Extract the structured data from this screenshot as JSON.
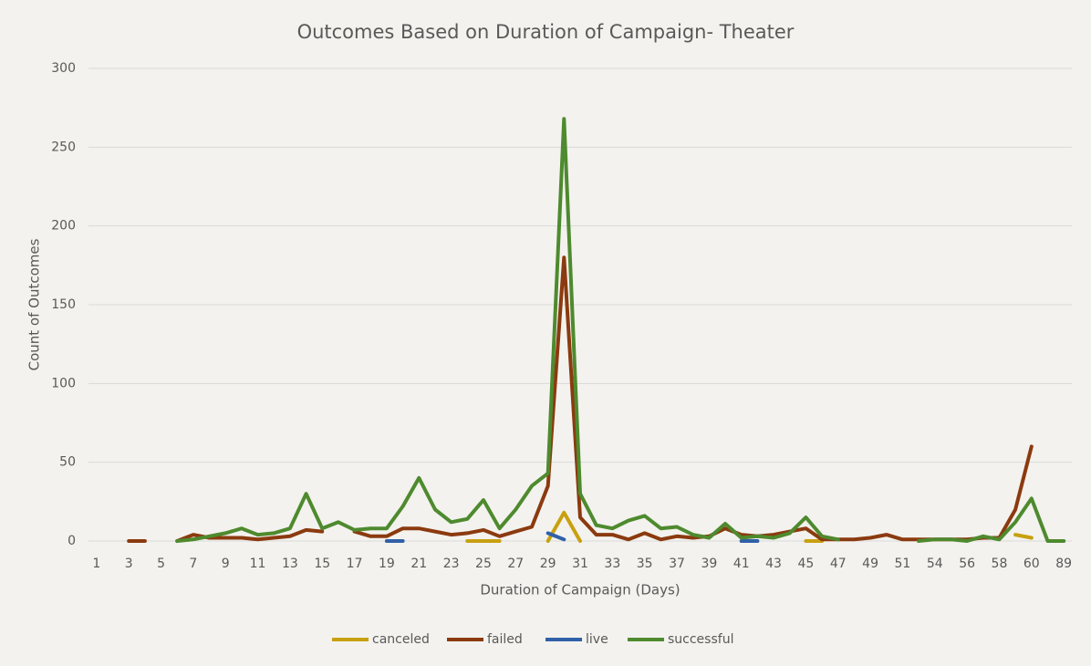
{
  "chart_data": {
    "type": "line",
    "title": "Outcomes Based on Duration of Campaign- Theater",
    "x_label": "Duration of Campaign (Days)",
    "y_label": "Count of Outcomes",
    "categories": [
      "1",
      null,
      "3",
      null,
      "5",
      null,
      "7",
      null,
      "9",
      null,
      "11",
      null,
      "13",
      null,
      "15",
      null,
      "17",
      null,
      "19",
      null,
      "21",
      null,
      "23",
      null,
      "25",
      null,
      "27",
      null,
      "29",
      null,
      "31",
      null,
      "33",
      null,
      "35",
      null,
      "37",
      null,
      "39",
      null,
      "41",
      null,
      "43",
      null,
      "45",
      null,
      "47",
      null,
      "49",
      null,
      "51",
      null,
      "54",
      null,
      "56",
      null,
      "58",
      null,
      "60",
      null,
      "89"
    ],
    "series": [
      {
        "name": "canceled",
        "color": "#c8a010",
        "values": [
          null,
          null,
          null,
          null,
          null,
          null,
          null,
          null,
          null,
          null,
          null,
          null,
          null,
          null,
          null,
          null,
          null,
          null,
          null,
          null,
          null,
          null,
          null,
          0,
          0,
          0,
          null,
          null,
          0,
          18,
          0,
          null,
          null,
          null,
          null,
          null,
          null,
          null,
          null,
          null,
          null,
          null,
          null,
          null,
          0,
          0,
          null,
          null,
          null,
          null,
          null,
          null,
          null,
          null,
          null,
          null,
          null,
          4,
          2,
          null,
          null
        ]
      },
      {
        "name": "failed",
        "color": "#8b3a0f",
        "values": [
          null,
          null,
          0,
          0,
          null,
          0,
          4,
          2,
          2,
          2,
          1,
          2,
          3,
          7,
          6,
          null,
          6,
          3,
          3,
          8,
          8,
          6,
          4,
          5,
          7,
          3,
          6,
          9,
          35,
          180,
          15,
          4,
          4,
          1,
          5,
          1,
          3,
          2,
          3,
          8,
          4,
          3,
          4,
          6,
          8,
          1,
          1,
          1,
          2,
          4,
          1,
          1,
          1,
          1,
          1,
          2,
          2,
          20,
          60,
          null,
          null
        ]
      },
      {
        "name": "live",
        "color": "#3060a8",
        "values": [
          null,
          null,
          null,
          null,
          null,
          null,
          null,
          null,
          null,
          null,
          null,
          null,
          null,
          null,
          null,
          null,
          null,
          null,
          0,
          0,
          null,
          null,
          null,
          null,
          null,
          null,
          null,
          null,
          5,
          1,
          null,
          null,
          null,
          null,
          null,
          null,
          null,
          null,
          null,
          null,
          0,
          0,
          null,
          null,
          null,
          null,
          null,
          null,
          null,
          null,
          null,
          null,
          null,
          null,
          null,
          null,
          null,
          null,
          null,
          null,
          null
        ]
      },
      {
        "name": "successful",
        "color": "#4e8a2e",
        "values": [
          null,
          null,
          null,
          null,
          null,
          0,
          1,
          3,
          5,
          8,
          4,
          5,
          8,
          30,
          8,
          12,
          7,
          8,
          8,
          22,
          40,
          20,
          12,
          14,
          26,
          8,
          20,
          35,
          43,
          268,
          30,
          10,
          8,
          13,
          16,
          8,
          9,
          4,
          2,
          11,
          2,
          3,
          2,
          5,
          15,
          3,
          1,
          null,
          null,
          null,
          null,
          0,
          1,
          1,
          0,
          3,
          1,
          12,
          27,
          0,
          0
        ]
      }
    ],
    "ylim": [
      0,
      300
    ],
    "yticks": [
      0,
      50,
      100,
      150,
      200,
      250,
      300
    ],
    "grid": true,
    "legend": "bottom"
  }
}
